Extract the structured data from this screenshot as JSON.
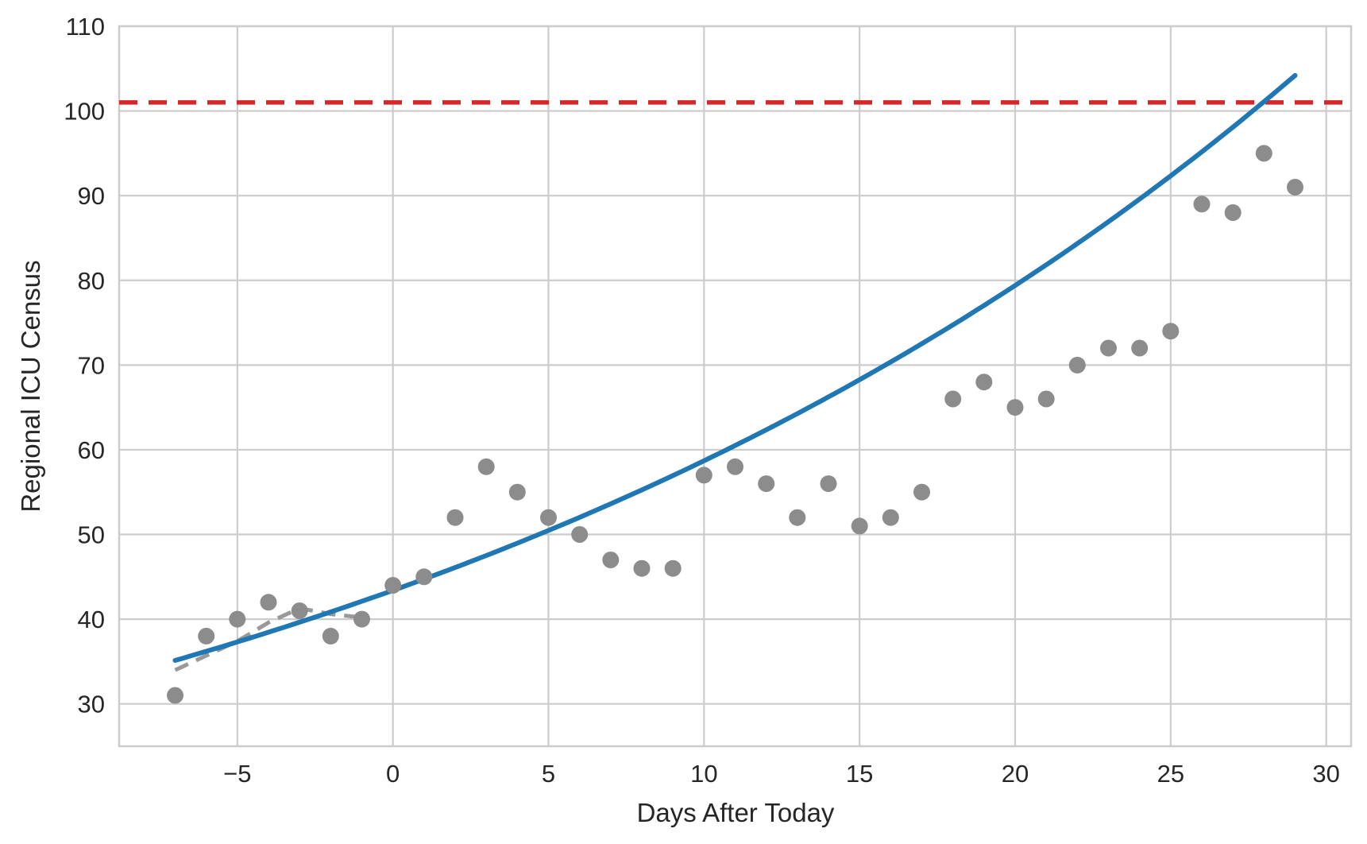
{
  "figure": {
    "background": "#ffffff"
  },
  "chart_data": {
    "type": "scatter",
    "title": "",
    "xlabel": "Days After Today",
    "ylabel": "Regional ICU Census",
    "xlim": [
      -8.8,
      30.8
    ],
    "ylim": [
      25,
      110
    ],
    "grid": true,
    "legend": "none",
    "xticks": [
      -5,
      0,
      5,
      10,
      15,
      20,
      25,
      30
    ],
    "xtick_labels": [
      "−5",
      "0",
      "5",
      "10",
      "15",
      "20",
      "25",
      "30"
    ],
    "yticks": [
      30,
      40,
      50,
      60,
      70,
      80,
      90,
      100,
      110
    ],
    "ytick_labels": [
      "30",
      "40",
      "50",
      "60",
      "70",
      "80",
      "90",
      "100",
      "110"
    ],
    "colors": {
      "observed_points": "#8c8c8c",
      "recent_trend": "#999999",
      "exponential_fit": "#1f77b4",
      "capacity_line": "#d62728",
      "gridline": "#cccccc",
      "text": "#262626"
    },
    "series": [
      {
        "name": "observed-census",
        "kind": "scatter",
        "color": "#8c8c8c",
        "marker_radius": 10.5,
        "x": [
          -7,
          -6,
          -5,
          -4,
          -3,
          -2,
          -1,
          0,
          1,
          2,
          3,
          4,
          5,
          6,
          7,
          8,
          9,
          10,
          11,
          12,
          13,
          14,
          15,
          16,
          17,
          18,
          19,
          20,
          21,
          22,
          23,
          24,
          25,
          26,
          27,
          28,
          29
        ],
        "y": [
          31,
          38,
          40,
          42,
          41,
          38,
          40,
          44,
          45,
          52,
          58,
          55,
          52,
          50,
          47,
          46,
          46,
          57,
          58,
          56,
          52,
          56,
          51,
          52,
          55,
          66,
          68,
          65,
          66,
          70,
          72,
          72,
          74,
          89,
          88,
          95,
          91
        ]
      },
      {
        "name": "recent-trend",
        "kind": "line",
        "style": "dashed",
        "color": "#999999",
        "width": 5,
        "dash": "18 11",
        "x": [
          -7,
          -6,
          -5,
          -4,
          -3,
          -2,
          -1
        ],
        "y": [
          34.0,
          35.7,
          37.4,
          39.6,
          41.3,
          40.6,
          40.2
        ]
      },
      {
        "name": "exponential-fit",
        "kind": "curve",
        "style": "solid",
        "color": "#1f77b4",
        "width": 6,
        "fit": {
          "model": "exponential",
          "a": 43.4,
          "b": 0.0302
        },
        "x_start": -7,
        "x_end": 29
      },
      {
        "name": "capacity-threshold",
        "kind": "hline",
        "style": "dashed",
        "color": "#d62728",
        "width": 5.5,
        "dash": "23 14",
        "y": 101
      }
    ]
  }
}
